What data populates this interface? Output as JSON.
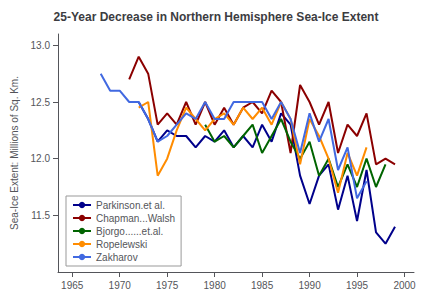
{
  "chart_data": {
    "type": "line",
    "title": "25-Year Decrease in Northern Hemisphere Sea-Ice Extent",
    "ylabel": "Sea-Ice Extent: Millions of Sq. Km.",
    "xlim": [
      1963.5,
      2001
    ],
    "xticks": [
      1965,
      1970,
      1975,
      1980,
      1985,
      1990,
      1995,
      2000
    ],
    "ylim": [
      11.0,
      13.1
    ],
    "yticks": [
      11.5,
      {
        "value": 12.0,
        "label": "12.0"
      },
      12.5,
      {
        "value": 13.0,
        "label": "13.0"
      }
    ],
    "grid": false,
    "legend": "lower left",
    "series": [
      {
        "name": "Parkinson.et al.",
        "color": "#00008B",
        "x": [
          1972,
          1973,
          1974,
          1975,
          1976,
          1977,
          1978,
          1979,
          1980,
          1981,
          1982,
          1983,
          1984,
          1985,
          1986,
          1987,
          1988,
          1989,
          1990,
          1991,
          1992,
          1993,
          1994,
          1995,
          1996,
          1997,
          1998,
          1999
        ],
        "values": [
          12.5,
          12.35,
          12.15,
          12.25,
          12.2,
          12.2,
          12.1,
          12.2,
          12.15,
          12.25,
          12.1,
          12.2,
          12.1,
          12.3,
          12.15,
          12.4,
          12.3,
          11.85,
          11.6,
          11.85,
          11.95,
          11.55,
          11.85,
          11.45,
          11.9,
          11.35,
          11.25,
          11.4
        ]
      },
      {
        "name": "Chapman...Walsh",
        "color": "#8B0000",
        "x": [
          1971,
          1972,
          1973,
          1974,
          1975,
          1976,
          1977,
          1978,
          1979,
          1980,
          1981,
          1982,
          1983,
          1984,
          1985,
          1986,
          1987,
          1988,
          1989,
          1990,
          1991,
          1992,
          1993,
          1994,
          1995,
          1996,
          1997,
          1998,
          1999
        ],
        "values": [
          12.7,
          12.9,
          12.75,
          12.3,
          12.4,
          12.3,
          12.5,
          12.3,
          12.5,
          12.3,
          12.45,
          12.3,
          12.45,
          12.5,
          12.4,
          12.6,
          12.5,
          12.05,
          12.65,
          12.5,
          12.3,
          12.5,
          12.05,
          12.3,
          12.2,
          12.4,
          11.95,
          12.0,
          11.95
        ]
      },
      {
        "name": "Bjorgo......et.al.",
        "color": "#006400",
        "x": [
          1979,
          1980,
          1981,
          1982,
          1983,
          1984,
          1985,
          1986,
          1987,
          1988,
          1989,
          1990,
          1991,
          1992,
          1993,
          1994,
          1995,
          1996,
          1997,
          1998
        ],
        "values": [
          12.3,
          12.15,
          12.2,
          12.1,
          12.2,
          12.3,
          12.05,
          12.2,
          12.35,
          12.15,
          12.0,
          12.15,
          11.85,
          12.0,
          11.75,
          11.95,
          11.75,
          12.0,
          11.75,
          11.95
        ]
      },
      {
        "name": "Ropelewski",
        "color": "#FF8C00",
        "x": [
          1972,
          1973,
          1974,
          1975,
          1976,
          1977,
          1978,
          1979,
          1980,
          1981,
          1982,
          1983,
          1984,
          1985,
          1986,
          1987,
          1988,
          1989,
          1990,
          1991,
          1992,
          1993,
          1994,
          1995,
          1996
        ],
        "values": [
          12.45,
          12.5,
          11.85,
          12.0,
          12.25,
          12.45,
          12.35,
          12.25,
          12.35,
          12.4,
          12.3,
          12.45,
          12.35,
          12.45,
          12.3,
          12.5,
          12.35,
          11.95,
          12.35,
          12.2,
          12.0,
          11.7,
          12.05,
          11.85,
          12.1
        ]
      },
      {
        "name": "Zakharov",
        "color": "#4169E1",
        "x": [
          1968,
          1969,
          1970,
          1971,
          1972,
          1973,
          1974,
          1975,
          1976,
          1977,
          1978,
          1979,
          1980,
          1981,
          1982,
          1983,
          1984,
          1985,
          1986,
          1987,
          1988,
          1989,
          1990,
          1991,
          1992,
          1993,
          1994,
          1995,
          1996
        ],
        "values": [
          12.75,
          12.6,
          12.6,
          12.5,
          12.5,
          12.35,
          12.15,
          12.2,
          12.3,
          12.4,
          12.35,
          12.5,
          12.35,
          12.35,
          12.5,
          12.5,
          12.5,
          12.5,
          12.35,
          12.5,
          12.35,
          12.05,
          12.4,
          12.15,
          12.35,
          11.9,
          12.1,
          11.65,
          11.8
        ]
      }
    ]
  }
}
